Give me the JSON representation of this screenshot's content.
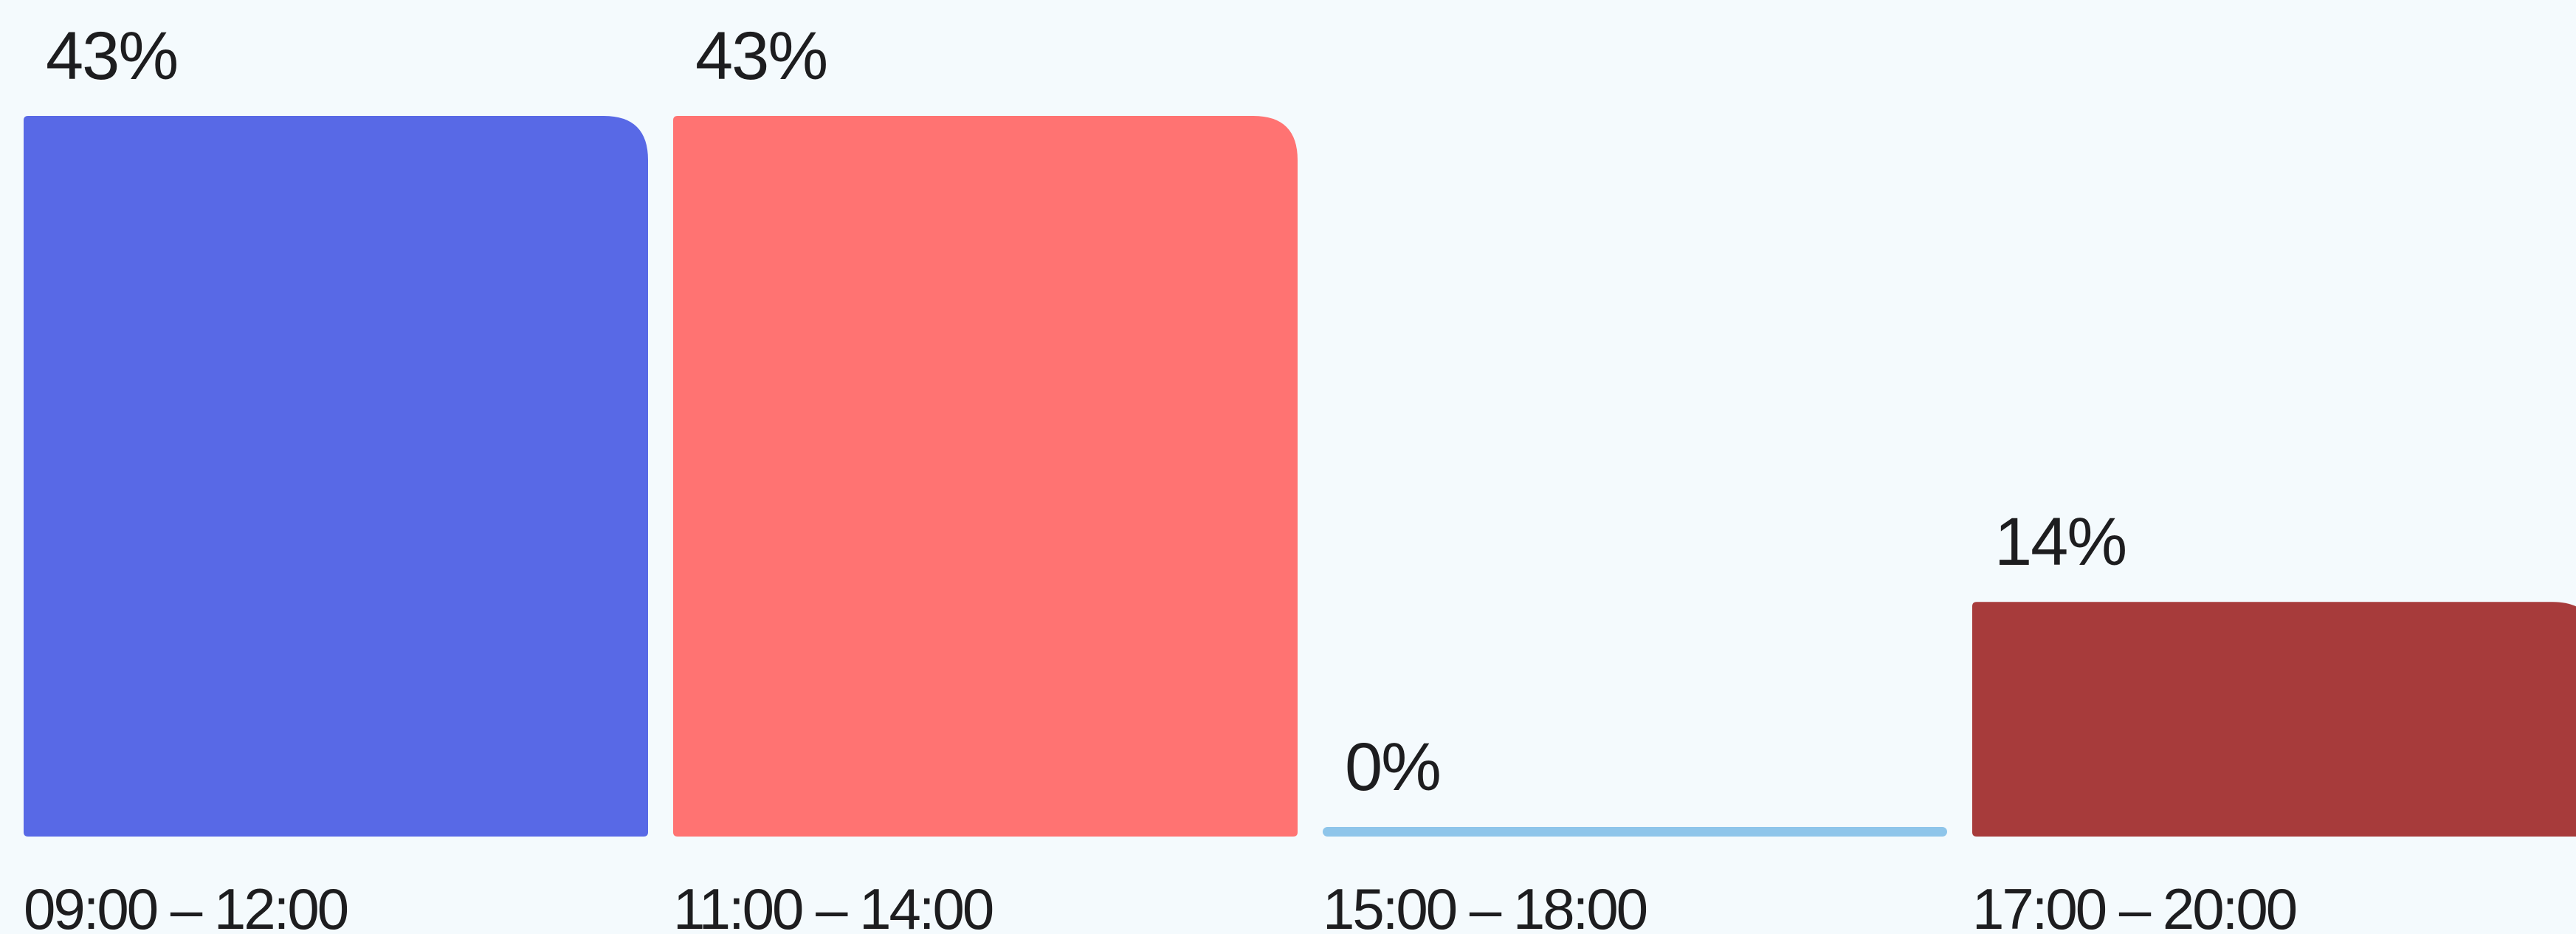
{
  "chart_data": {
    "type": "bar",
    "title": "",
    "xlabel": "",
    "ylabel": "",
    "ylim": [
      0,
      43
    ],
    "grid": false,
    "legend": "none",
    "categories": [
      "09:00 – 12:00",
      "11:00 – 14:00",
      "15:00 – 18:00",
      "17:00 – 20:00"
    ],
    "values": [
      43,
      43,
      0,
      14
    ],
    "value_labels": [
      "43%",
      "43%",
      "0%",
      "14%"
    ],
    "colors": [
      "#5869e6",
      "#ff7372",
      "#8ec5ea",
      "#a73b3b"
    ]
  }
}
